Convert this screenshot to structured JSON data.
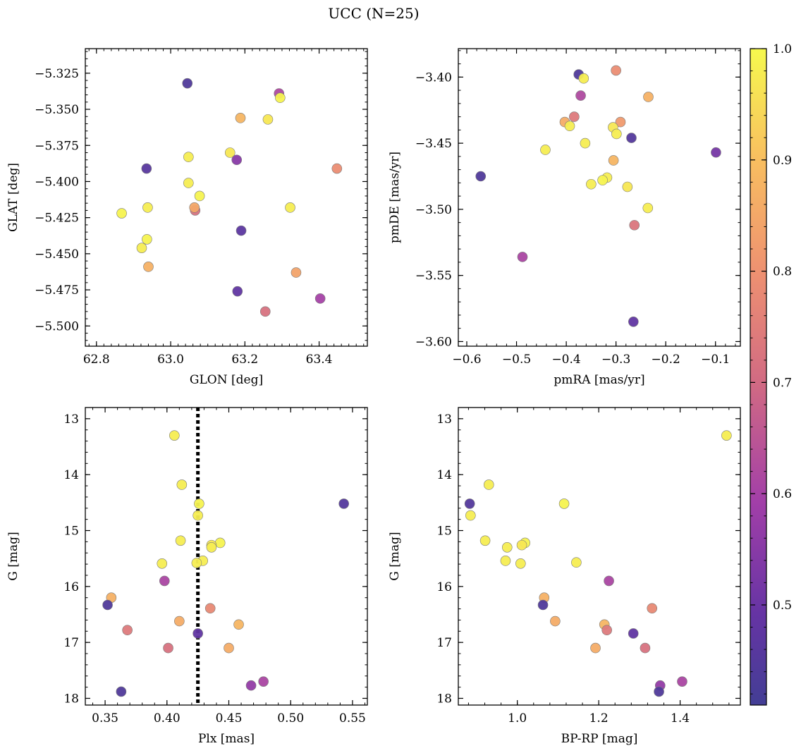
{
  "figure": {
    "suptitle": "UCC (N=25)",
    "colorbar": {
      "ticks": [
        "0.5",
        "0.6",
        "0.7",
        "0.8",
        "0.9",
        "1.0"
      ],
      "range": [
        0.41,
        1.0
      ],
      "colormap": "plasma"
    },
    "guide_line": {
      "x": 0.425
    }
  },
  "chart_data": [
    {
      "type": "scatter",
      "xlabel": "GLON [deg]",
      "ylabel": "GLAT [deg]",
      "xlim": [
        62.77,
        63.53
      ],
      "ylim": [
        -5.514,
        -5.308
      ],
      "xticks": [
        "62.8",
        "63.0",
        "63.2",
        "63.4"
      ],
      "yticks": [
        "−5.325",
        "−5.350",
        "−5.375",
        "−5.400",
        "−5.425",
        "−5.450",
        "−5.475",
        "−5.500"
      ],
      "points": [
        {
          "x": 63.045,
          "y": -5.332,
          "c": 0.44
        },
        {
          "x": 63.292,
          "y": -5.339,
          "c": 0.62
        },
        {
          "x": 63.295,
          "y": -5.342,
          "c": 0.99
        },
        {
          "x": 63.188,
          "y": -5.356,
          "c": 0.88
        },
        {
          "x": 63.262,
          "y": -5.357,
          "c": 0.97
        },
        {
          "x": 63.16,
          "y": -5.38,
          "c": 0.97
        },
        {
          "x": 63.048,
          "y": -5.383,
          "c": 0.98
        },
        {
          "x": 63.178,
          "y": -5.385,
          "c": 0.55
        },
        {
          "x": 62.935,
          "y": -5.391,
          "c": 0.46
        },
        {
          "x": 63.448,
          "y": -5.391,
          "c": 0.79
        },
        {
          "x": 63.048,
          "y": -5.401,
          "c": 0.98
        },
        {
          "x": 63.078,
          "y": -5.41,
          "c": 0.99
        },
        {
          "x": 62.938,
          "y": -5.418,
          "c": 0.98
        },
        {
          "x": 63.322,
          "y": -5.418,
          "c": 0.98
        },
        {
          "x": 63.066,
          "y": -5.42,
          "c": 0.72
        },
        {
          "x": 63.064,
          "y": -5.418,
          "c": 0.85
        },
        {
          "x": 62.868,
          "y": -5.422,
          "c": 0.99
        },
        {
          "x": 63.19,
          "y": -5.434,
          "c": 0.47
        },
        {
          "x": 62.936,
          "y": -5.44,
          "c": 0.99
        },
        {
          "x": 62.922,
          "y": -5.446,
          "c": 0.98
        },
        {
          "x": 62.94,
          "y": -5.459,
          "c": 0.87
        },
        {
          "x": 63.338,
          "y": -5.463,
          "c": 0.84
        },
        {
          "x": 63.18,
          "y": -5.476,
          "c": 0.48
        },
        {
          "x": 63.403,
          "y": -5.481,
          "c": 0.6
        },
        {
          "x": 63.255,
          "y": -5.49,
          "c": 0.72
        }
      ]
    },
    {
      "type": "scatter",
      "xlabel": "pmRA [mas/yr]",
      "ylabel": "pmDE [mas/yr]",
      "xlim": [
        -0.617,
        -0.05
      ],
      "ylim": [
        -3.6035,
        -3.3785
      ],
      "xticks": [
        "−0.6",
        "−0.5",
        "−0.4",
        "−0.3",
        "−0.2",
        "−0.1"
      ],
      "yticks": [
        "−3.40",
        "−3.45",
        "−3.50",
        "−3.55",
        "−3.60"
      ],
      "points": [
        {
          "x": -0.375,
          "y": -3.398,
          "c": 0.44
        },
        {
          "x": -0.365,
          "y": -3.401,
          "c": 0.98
        },
        {
          "x": -0.3,
          "y": -3.395,
          "c": 0.79
        },
        {
          "x": -0.371,
          "y": -3.414,
          "c": 0.62
        },
        {
          "x": -0.235,
          "y": -3.415,
          "c": 0.87
        },
        {
          "x": -0.384,
          "y": -3.43,
          "c": 0.74
        },
        {
          "x": -0.403,
          "y": -3.434,
          "c": 0.86
        },
        {
          "x": -0.393,
          "y": -3.437,
          "c": 0.98
        },
        {
          "x": -0.291,
          "y": -3.434,
          "c": 0.82
        },
        {
          "x": -0.306,
          "y": -3.438,
          "c": 0.97
        },
        {
          "x": -0.299,
          "y": -3.443,
          "c": 0.98
        },
        {
          "x": -0.269,
          "y": -3.446,
          "c": 0.45
        },
        {
          "x": -0.362,
          "y": -3.45,
          "c": 0.98
        },
        {
          "x": -0.442,
          "y": -3.455,
          "c": 0.98
        },
        {
          "x": -0.099,
          "y": -3.457,
          "c": 0.52
        },
        {
          "x": -0.305,
          "y": -3.463,
          "c": 0.88
        },
        {
          "x": -0.572,
          "y": -3.475,
          "c": 0.44
        },
        {
          "x": -0.318,
          "y": -3.476,
          "c": 0.98
        },
        {
          "x": -0.327,
          "y": -3.478,
          "c": 0.99
        },
        {
          "x": -0.35,
          "y": -3.481,
          "c": 0.98
        },
        {
          "x": -0.277,
          "y": -3.483,
          "c": 0.97
        },
        {
          "x": -0.236,
          "y": -3.499,
          "c": 0.98
        },
        {
          "x": -0.263,
          "y": -3.512,
          "c": 0.73
        },
        {
          "x": -0.488,
          "y": -3.536,
          "c": 0.61
        },
        {
          "x": -0.265,
          "y": -3.585,
          "c": 0.48
        }
      ]
    },
    {
      "type": "scatter",
      "xlabel": "Plx [mas]",
      "ylabel": "G [mag]",
      "xlim": [
        0.334,
        0.562
      ],
      "ylim": [
        18.12,
        12.8
      ],
      "xticks": [
        "0.35",
        "0.40",
        "0.45",
        "0.50",
        "0.55"
      ],
      "yticks": [
        "13",
        "14",
        "15",
        "16",
        "17",
        "18"
      ],
      "points": [
        {
          "x": 0.406,
          "y": 13.3,
          "c": 0.98
        },
        {
          "x": 0.412,
          "y": 14.18,
          "c": 0.98
        },
        {
          "x": 0.426,
          "y": 14.52,
          "c": 0.99
        },
        {
          "x": 0.543,
          "y": 14.52,
          "c": 0.45
        },
        {
          "x": 0.425,
          "y": 14.73,
          "c": 0.98
        },
        {
          "x": 0.411,
          "y": 15.18,
          "c": 0.98
        },
        {
          "x": 0.443,
          "y": 15.22,
          "c": 0.99
        },
        {
          "x": 0.436,
          "y": 15.26,
          "c": 0.97
        },
        {
          "x": 0.436,
          "y": 15.3,
          "c": 0.98
        },
        {
          "x": 0.429,
          "y": 15.54,
          "c": 0.98
        },
        {
          "x": 0.424,
          "y": 15.58,
          "c": 0.98
        },
        {
          "x": 0.396,
          "y": 15.59,
          "c": 0.98
        },
        {
          "x": 0.398,
          "y": 15.9,
          "c": 0.61
        },
        {
          "x": 0.355,
          "y": 16.2,
          "c": 0.87
        },
        {
          "x": 0.352,
          "y": 16.33,
          "c": 0.44
        },
        {
          "x": 0.435,
          "y": 16.39,
          "c": 0.78
        },
        {
          "x": 0.41,
          "y": 16.62,
          "c": 0.86
        },
        {
          "x": 0.458,
          "y": 16.68,
          "c": 0.88
        },
        {
          "x": 0.368,
          "y": 16.78,
          "c": 0.74
        },
        {
          "x": 0.425,
          "y": 16.84,
          "c": 0.48
        },
        {
          "x": 0.401,
          "y": 17.1,
          "c": 0.72
        },
        {
          "x": 0.45,
          "y": 17.1,
          "c": 0.86
        },
        {
          "x": 0.478,
          "y": 17.7,
          "c": 0.61
        },
        {
          "x": 0.468,
          "y": 17.77,
          "c": 0.57
        },
        {
          "x": 0.363,
          "y": 17.88,
          "c": 0.44
        }
      ]
    },
    {
      "type": "scatter",
      "xlabel": "BP-RP [mag]",
      "ylabel": "G [mag]",
      "xlim": [
        0.855,
        1.548
      ],
      "ylim": [
        18.12,
        12.8
      ],
      "xticks": [
        "1.0",
        "1.2",
        "1.4"
      ],
      "yticks": [
        "13",
        "14",
        "15",
        "16",
        "17",
        "18"
      ],
      "points": [
        {
          "x": 1.514,
          "y": 13.3,
          "c": 0.98
        },
        {
          "x": 0.93,
          "y": 14.18,
          "c": 0.98
        },
        {
          "x": 0.883,
          "y": 14.52,
          "c": 0.45
        },
        {
          "x": 1.115,
          "y": 14.52,
          "c": 0.99
        },
        {
          "x": 0.885,
          "y": 14.73,
          "c": 0.98
        },
        {
          "x": 0.921,
          "y": 15.18,
          "c": 0.98
        },
        {
          "x": 1.019,
          "y": 15.22,
          "c": 0.99
        },
        {
          "x": 1.011,
          "y": 15.26,
          "c": 0.97
        },
        {
          "x": 0.975,
          "y": 15.3,
          "c": 0.98
        },
        {
          "x": 0.971,
          "y": 15.54,
          "c": 0.98
        },
        {
          "x": 1.145,
          "y": 15.57,
          "c": 0.98
        },
        {
          "x": 1.008,
          "y": 15.59,
          "c": 0.98
        },
        {
          "x": 1.225,
          "y": 15.9,
          "c": 0.61
        },
        {
          "x": 1.066,
          "y": 16.2,
          "c": 0.87
        },
        {
          "x": 1.063,
          "y": 16.33,
          "c": 0.44
        },
        {
          "x": 1.331,
          "y": 16.39,
          "c": 0.78
        },
        {
          "x": 1.093,
          "y": 16.62,
          "c": 0.86
        },
        {
          "x": 1.214,
          "y": 16.68,
          "c": 0.88
        },
        {
          "x": 1.22,
          "y": 16.78,
          "c": 0.74
        },
        {
          "x": 1.285,
          "y": 16.84,
          "c": 0.48
        },
        {
          "x": 1.192,
          "y": 17.1,
          "c": 0.86
        },
        {
          "x": 1.314,
          "y": 17.1,
          "c": 0.72
        },
        {
          "x": 1.405,
          "y": 17.7,
          "c": 0.61
        },
        {
          "x": 1.351,
          "y": 17.77,
          "c": 0.57
        },
        {
          "x": 1.348,
          "y": 17.88,
          "c": 0.44
        }
      ]
    }
  ]
}
